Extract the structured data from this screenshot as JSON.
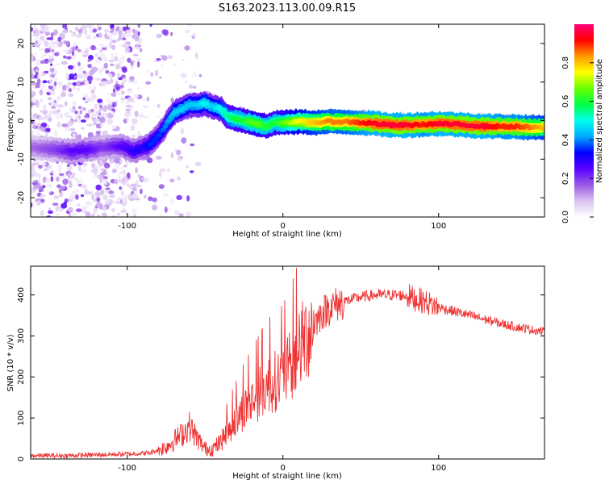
{
  "title": "S163.2023.113.00.09.R15",
  "chart_data": [
    {
      "type": "heatmap",
      "xlabel": "Height of straight line (km)",
      "ylabel": "Frequency (Hz)",
      "xlim": [
        -162,
        168
      ],
      "ylim": [
        -25,
        25
      ],
      "x_ticks": [
        -100,
        0,
        100
      ],
      "y_ticks": [
        -20,
        -10,
        0,
        10,
        20
      ],
      "colorbar": {
        "label": "Normalized spectral amplitude",
        "range": [
          0,
          1
        ],
        "ticks": [
          0.0,
          0.2,
          0.4,
          0.6,
          0.8
        ],
        "colors": [
          "#ffffff",
          "#d9c2f0",
          "#9b59e6",
          "#5a00ff",
          "#0000ff",
          "#00aaff",
          "#00ffee",
          "#00ff44",
          "#66ff00",
          "#ffff00",
          "#ff9900",
          "#ff0000",
          "#ff0077"
        ]
      },
      "ridge": {
        "x": [
          -162,
          -145,
          -135,
          -125,
          -115,
          -105,
          -95,
          -90,
          -85,
          -80,
          -75,
          -70,
          -65,
          -60,
          -55,
          -50,
          -45,
          -40,
          -35,
          -30,
          -25,
          -20,
          -15,
          -10,
          -5,
          0,
          10,
          20,
          30,
          40,
          50,
          60,
          70,
          80,
          90,
          100,
          110,
          120,
          130,
          140,
          150,
          160,
          168
        ],
        "y": [
          -7,
          -7.5,
          -8,
          -7.5,
          -7,
          -6.5,
          -8,
          -7,
          -6,
          -4,
          -1,
          2,
          3,
          4,
          4,
          4.5,
          3.5,
          3,
          1,
          0.5,
          0,
          -0.5,
          -1,
          -1.5,
          -0.5,
          -0.5,
          -0.3,
          -0.5,
          -0.3,
          -0.3,
          -0.5,
          -0.8,
          -1.2,
          -1.2,
          -1,
          -0.8,
          -1,
          -1.2,
          -1.5,
          -1.5,
          -1.6,
          -1.8,
          -1.8
        ],
        "amplitude": [
          0.15,
          0.2,
          0.25,
          0.25,
          0.2,
          0.25,
          0.3,
          0.3,
          0.35,
          0.35,
          0.4,
          0.45,
          0.45,
          0.45,
          0.45,
          0.5,
          0.45,
          0.5,
          0.55,
          0.6,
          0.6,
          0.65,
          0.65,
          0.6,
          0.6,
          0.65,
          0.75,
          0.8,
          0.85,
          0.85,
          0.9,
          0.95,
          0.95,
          0.95,
          0.9,
          0.95,
          0.95,
          0.95,
          0.95,
          0.9,
          0.9,
          0.85,
          0.8
        ]
      }
    },
    {
      "type": "line",
      "xlabel": "Height of straight line (km)",
      "ylabel": "SNR (10 * v/v)",
      "xlim": [
        -162,
        168
      ],
      "ylim": [
        0,
        470
      ],
      "x_ticks": [
        -100,
        0,
        100
      ],
      "y_ticks": [
        0,
        100,
        200,
        300,
        400
      ],
      "color": "#ee3333",
      "trend": {
        "x": [
          -162,
          -140,
          -120,
          -100,
          -85,
          -75,
          -65,
          -60,
          -55,
          -50,
          -45,
          -40,
          -35,
          -30,
          -25,
          -20,
          -15,
          -10,
          -5,
          0,
          5,
          10,
          15,
          20,
          25,
          30,
          40,
          50,
          60,
          70,
          80,
          85,
          90,
          100,
          110,
          120,
          130,
          140,
          150,
          160,
          168
        ],
        "y": [
          8,
          8,
          10,
          12,
          15,
          30,
          60,
          80,
          50,
          25,
          25,
          40,
          70,
          95,
          120,
          140,
          160,
          180,
          190,
          200,
          225,
          260,
          300,
          330,
          355,
          370,
          385,
          395,
          400,
          400,
          398,
          390,
          385,
          370,
          360,
          350,
          340,
          330,
          322,
          315,
          310
        ]
      }
    }
  ]
}
